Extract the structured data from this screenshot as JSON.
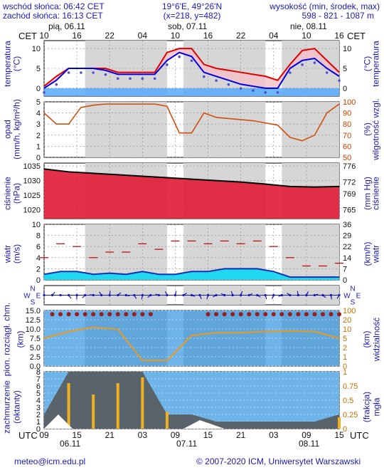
{
  "header": {
    "sunrise": "wschód słońca: 06:42 CET",
    "sunset": "zachód słońca: 16:13 CET",
    "coords": "19°6'E, 49°26'N",
    "grid": "(x=218, y=482)",
    "elevation_label": "wysokość (min, środek, max)",
    "elevation_values": "598 - 821 - 1087 m",
    "cet": "CET",
    "utc": "UTC"
  },
  "days_top": [
    "pią, 06.11",
    "sob, 07.11",
    "nie, 08.11"
  ],
  "hours_top": [
    "10",
    "16",
    "22",
    "04",
    "10",
    "16",
    "22",
    "04",
    "10",
    "16"
  ],
  "hours_bottom": [
    "09",
    "15",
    "21",
    "03",
    "09",
    "15",
    "21",
    "03",
    "09",
    "15"
  ],
  "days_bottom": [
    "06.11",
    "07.11",
    "08.11"
  ],
  "footer": {
    "email": "meteo@icm.edu.pl",
    "copyright": "© 2007-2020 ICM, Uniwersytet Warszawski"
  },
  "panels": {
    "temperature": {
      "left_label": "temperatura",
      "left_unit": "(°C)",
      "right_unit": "(°C)",
      "right_label": "temperatura",
      "ticks": [
        "10",
        "5",
        "0"
      ]
    },
    "precip": {
      "left_label": "opad",
      "left_unit": "(mm/h, kg/m²/h)",
      "right_unit": "(%)",
      "right_label": "wilgotność wzgl.",
      "left_ticks": [
        "5",
        "4",
        "3",
        "2",
        "1",
        "0"
      ],
      "right_ticks": [
        "100",
        "90",
        "80",
        "70",
        "60",
        "50"
      ]
    },
    "pressure": {
      "left_label": "ciśnienie",
      "left_unit": "(hPa)",
      "right_unit": "(mm Hg)",
      "right_label": "ciśnienie",
      "left_ticks": [
        "1035",
        "1030",
        "1025",
        "1020"
      ],
      "right_ticks": [
        "776",
        "772",
        "769",
        "765"
      ]
    },
    "wind": {
      "left_label": "wiatr",
      "left_unit": "(m/s)",
      "right_unit": "(km/h)",
      "right_label": "wiatr",
      "left_ticks": [
        "10",
        "8",
        "6",
        "4",
        "2",
        "0"
      ],
      "right_ticks": [
        "36",
        "29",
        "22",
        "14",
        "7",
        "0"
      ]
    },
    "direction": {
      "compass_left": [
        "N",
        "W",
        "E",
        "S"
      ],
      "compass_right": [
        "N",
        "W",
        "E",
        "S"
      ]
    },
    "cloudbase": {
      "left_label": "pion. rozciągł. chm.",
      "left_unit": "(km)",
      "right_unit": "(km)",
      "right_label": "widzialność",
      "left_ticks": [
        "15.0",
        "12.5",
        "10.0",
        "7.5",
        "5.0",
        "2.5",
        "0.0"
      ],
      "right_ticks": [
        "100",
        "20",
        "10",
        "5",
        "2",
        "1",
        "0"
      ]
    },
    "cloudcover": {
      "left_label": "zachmurzenie",
      "left_unit": "(oktanty)",
      "right_unit": "(frakcja)",
      "right_label": "mgła",
      "left_ticks": [
        "8",
        "7",
        "6",
        "5",
        "4",
        "3",
        "2",
        "1",
        "0"
      ],
      "right_ticks": [
        "1",
        "0.75",
        "0.5",
        "0.25",
        "0"
      ]
    }
  },
  "chart_data": [
    {
      "type": "line",
      "name": "temperature",
      "ylim": [
        -2,
        12
      ],
      "x_hours": [
        0,
        3,
        6,
        9,
        12,
        15,
        18,
        21,
        24,
        27,
        30,
        33,
        36,
        39,
        42,
        45,
        48,
        51,
        54,
        57,
        60,
        63,
        66,
        69,
        72
      ],
      "series": [
        {
          "name": "max",
          "values": [
            0.5,
            3,
            5,
            5,
            5,
            5,
            4,
            4,
            4,
            4,
            9,
            10,
            10,
            6,
            5,
            4.5,
            4,
            3.5,
            3,
            2,
            6,
            9.5,
            10,
            7,
            4
          ]
        },
        {
          "name": "min",
          "values": [
            0,
            2,
            5,
            5,
            5,
            4.5,
            3.5,
            3.5,
            3.5,
            3.5,
            7,
            9,
            8,
            4,
            3,
            2,
            1,
            0.5,
            0,
            0,
            5,
            7,
            7.5,
            5,
            3
          ]
        }
      ]
    },
    {
      "type": "line",
      "name": "humidity",
      "ylim": [
        50,
        100
      ],
      "x_hours": [
        0,
        3,
        6,
        9,
        12,
        15,
        18,
        21,
        24,
        27,
        30,
        33,
        36,
        39,
        42,
        45,
        48,
        51,
        54,
        57,
        60,
        63,
        66,
        69,
        72
      ],
      "values": [
        90,
        80,
        80,
        95,
        97,
        98,
        98,
        98,
        98,
        98,
        96,
        72,
        72,
        90,
        86,
        85,
        84,
        83,
        81,
        79,
        68,
        65,
        70,
        90,
        98
      ]
    },
    {
      "type": "line",
      "name": "pressure",
      "ylim": [
        1017,
        1036
      ],
      "x_hours": [
        0,
        6,
        12,
        18,
        24,
        30,
        36,
        42,
        48,
        54,
        60,
        66,
        72
      ],
      "values": [
        1034,
        1033,
        1032.5,
        1032,
        1031.5,
        1031,
        1030.5,
        1030,
        1029.5,
        1028.8,
        1028,
        1027.8,
        1028
      ]
    },
    {
      "type": "bar",
      "name": "wind",
      "ylim": [
        0,
        10
      ],
      "x_hours": [
        0,
        4,
        8,
        12,
        16,
        20,
        24,
        28,
        32,
        36,
        40,
        44,
        48,
        52,
        56,
        60,
        64,
        68,
        72
      ],
      "values": [
        1,
        1.5,
        1.5,
        1,
        1.2,
        1,
        1.5,
        1,
        1,
        1.5,
        1.5,
        2,
        2,
        2,
        1.5,
        0.5,
        0.5,
        0.5,
        0.5
      ],
      "gusts": [
        4,
        6.5,
        6,
        4,
        5,
        5,
        6.5,
        5.5,
        7,
        7,
        6.5,
        7,
        6.5,
        7,
        6,
        4,
        2.5,
        2.5,
        3
      ]
    },
    {
      "type": "line",
      "name": "visibility",
      "ylim": [
        0,
        100
      ],
      "x_hours": [
        0,
        6,
        12,
        18,
        24,
        30,
        36,
        42,
        48,
        54,
        60,
        66,
        72
      ],
      "values": [
        50,
        62,
        70,
        66,
        10,
        10,
        55,
        60,
        60,
        62,
        63,
        62,
        50
      ]
    },
    {
      "type": "bar",
      "name": "cloud_cover",
      "ylim": [
        0,
        8
      ],
      "x_hours": [
        0,
        6,
        12,
        18,
        24,
        30,
        36,
        42,
        48,
        54,
        60,
        66,
        72
      ],
      "values": [
        2,
        8,
        8,
        8,
        8,
        2,
        2,
        1,
        1,
        1,
        1,
        1,
        2
      ],
      "fog": [
        0,
        0.8,
        0.6,
        0.8,
        0.9,
        0.3,
        0,
        0,
        0,
        0,
        0,
        0,
        0.2
      ]
    }
  ]
}
